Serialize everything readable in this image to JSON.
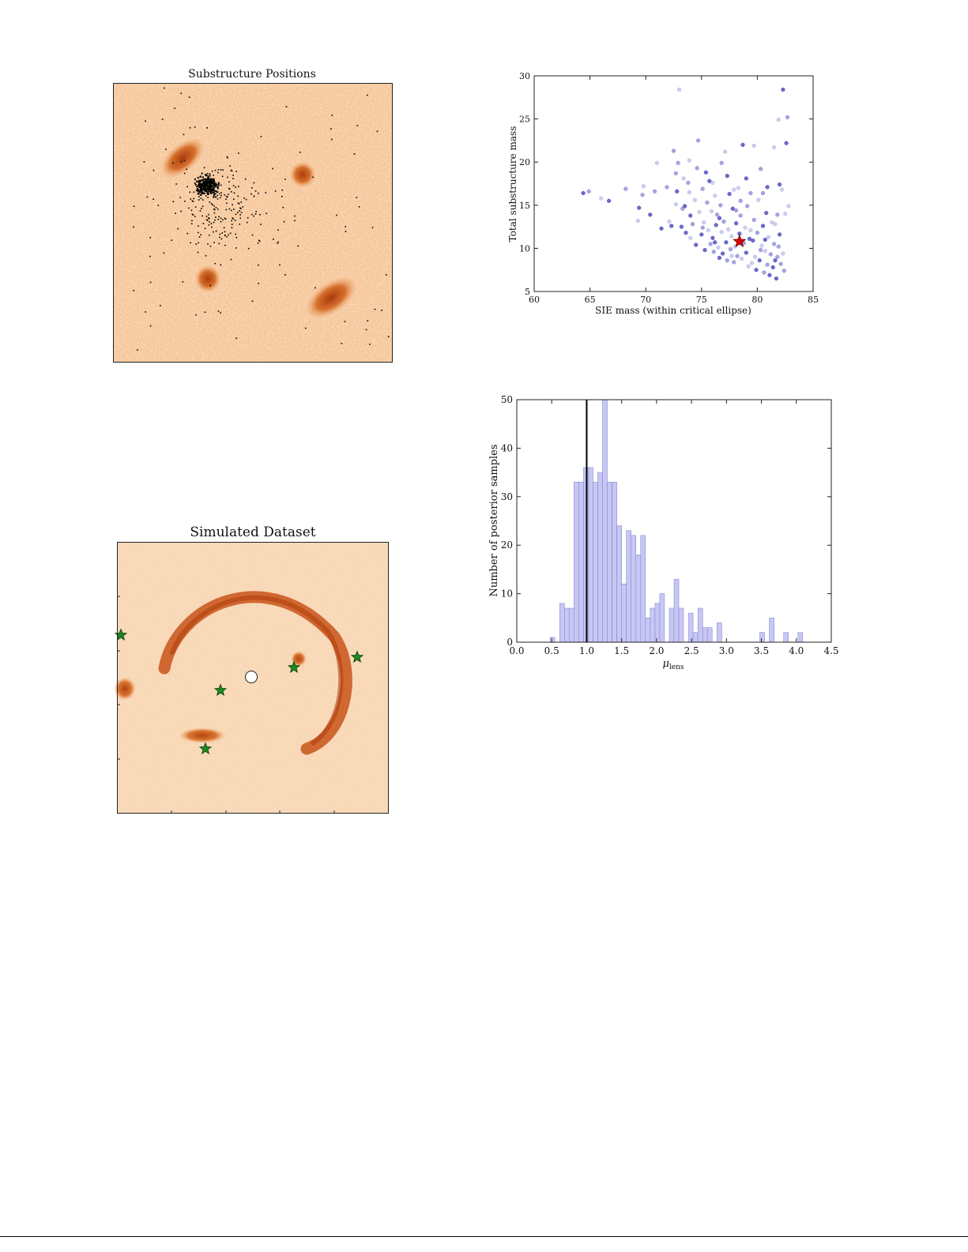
{
  "figures": {
    "substructure_map": {
      "title": "Substructure Positions"
    },
    "simulated_dataset": {
      "title": "Simulated Dataset"
    }
  },
  "colors": {
    "background_light": "#f8d9b6",
    "arc_dark": "#c24a12",
    "scatter_blue": "#3a3ab8",
    "true_value_star": "#e00000",
    "green_star": "#1d8a1d",
    "hist_fill": "#c7c7f3",
    "hist_edge": "#8a8ad6"
  },
  "chart_data": [
    {
      "type": "scatter",
      "title": "",
      "xlabel": "SIE mass (within critical ellipse)",
      "ylabel": "Total substructure mass",
      "xlim": [
        60,
        85
      ],
      "ylim": [
        5,
        30
      ],
      "xticks": [
        60,
        65,
        70,
        75,
        80,
        85
      ],
      "yticks": [
        5,
        10,
        15,
        20,
        25,
        30
      ],
      "true_value": {
        "x": 78.4,
        "y": 10.8,
        "marker": "red-star"
      },
      "points": [
        [
          64.4,
          16.4
        ],
        [
          64.9,
          16.6
        ],
        [
          66.0,
          15.8
        ],
        [
          66.7,
          15.5
        ],
        [
          68.2,
          16.9
        ],
        [
          69.3,
          13.2
        ],
        [
          69.4,
          14.7
        ],
        [
          69.7,
          16.2
        ],
        [
          69.8,
          17.2
        ],
        [
          70.4,
          13.9
        ],
        [
          70.8,
          16.6
        ],
        [
          71.0,
          19.9
        ],
        [
          71.4,
          12.3
        ],
        [
          71.9,
          17.1
        ],
        [
          72.1,
          13.1
        ],
        [
          72.3,
          12.6
        ],
        [
          72.5,
          21.3
        ],
        [
          72.7,
          15.1
        ],
        [
          72.8,
          16.6
        ],
        [
          72.9,
          19.9
        ],
        [
          73.0,
          28.4
        ],
        [
          73.2,
          12.5
        ],
        [
          73.3,
          14.6
        ],
        [
          73.4,
          18.1
        ],
        [
          73.6,
          11.8
        ],
        [
          73.8,
          17.6
        ],
        [
          73.9,
          16.5
        ],
        [
          74.0,
          13.8
        ],
        [
          74.2,
          12.8
        ],
        [
          74.4,
          15.6
        ],
        [
          74.5,
          10.4
        ],
        [
          74.7,
          22.5
        ],
        [
          74.8,
          14.2
        ],
        [
          75.0,
          11.6
        ],
        [
          75.1,
          16.9
        ],
        [
          75.2,
          13.0
        ],
        [
          75.3,
          9.8
        ],
        [
          75.5,
          15.3
        ],
        [
          75.6,
          12.1
        ],
        [
          75.7,
          17.8
        ],
        [
          75.8,
          10.5
        ],
        [
          75.9,
          14.3
        ],
        [
          76.0,
          11.2
        ],
        [
          76.1,
          9.6
        ],
        [
          76.2,
          16.1
        ],
        [
          76.3,
          12.7
        ],
        [
          76.4,
          13.9
        ],
        [
          76.5,
          10.1
        ],
        [
          76.6,
          8.9
        ],
        [
          76.7,
          15.0
        ],
        [
          76.8,
          11.9
        ],
        [
          76.9,
          9.4
        ],
        [
          77.0,
          13.1
        ],
        [
          77.1,
          21.2
        ],
        [
          77.2,
          10.7
        ],
        [
          77.3,
          8.6
        ],
        [
          77.4,
          12.2
        ],
        [
          77.5,
          16.3
        ],
        [
          77.6,
          9.9
        ],
        [
          77.7,
          11.4
        ],
        [
          77.8,
          14.6
        ],
        [
          77.9,
          8.4
        ],
        [
          78.0,
          10.2
        ],
        [
          78.1,
          12.9
        ],
        [
          78.2,
          9.1
        ],
        [
          78.3,
          17.0
        ],
        [
          78.4,
          11.7
        ],
        [
          78.5,
          13.8
        ],
        [
          78.6,
          8.8
        ],
        [
          78.7,
          22.0
        ],
        [
          78.8,
          10.6
        ],
        [
          78.9,
          12.4
        ],
        [
          79.0,
          9.5
        ],
        [
          79.1,
          14.9
        ],
        [
          79.2,
          7.9
        ],
        [
          79.3,
          11.1
        ],
        [
          79.4,
          16.4
        ],
        [
          79.5,
          8.3
        ],
        [
          79.6,
          10.9
        ],
        [
          79.7,
          13.3
        ],
        [
          79.8,
          9.0
        ],
        [
          79.9,
          7.5
        ],
        [
          80.0,
          11.8
        ],
        [
          80.1,
          15.6
        ],
        [
          80.2,
          8.6
        ],
        [
          80.3,
          19.2
        ],
        [
          80.4,
          10.3
        ],
        [
          80.5,
          12.6
        ],
        [
          80.6,
          7.2
        ],
        [
          80.7,
          9.7
        ],
        [
          80.8,
          14.1
        ],
        [
          80.9,
          8.1
        ],
        [
          81.0,
          11.3
        ],
        [
          81.1,
          6.9
        ],
        [
          81.2,
          9.3
        ],
        [
          81.3,
          13.0
        ],
        [
          81.4,
          7.8
        ],
        [
          81.5,
          10.5
        ],
        [
          81.6,
          12.8
        ],
        [
          81.7,
          6.5
        ],
        [
          81.8,
          9.0
        ],
        [
          81.9,
          24.9
        ],
        [
          82.0,
          11.6
        ],
        [
          82.1,
          8.2
        ],
        [
          82.2,
          16.8
        ],
        [
          82.3,
          28.4
        ],
        [
          82.4,
          7.4
        ],
        [
          82.5,
          14.0
        ],
        [
          82.6,
          22.2
        ],
        [
          82.7,
          25.2
        ],
        [
          82.8,
          14.9
        ],
        [
          82.0,
          17.4
        ],
        [
          81.8,
          13.9
        ],
        [
          81.5,
          21.7
        ],
        [
          80.9,
          17.1
        ],
        [
          80.5,
          16.4
        ],
        [
          79.7,
          21.9
        ],
        [
          79.0,
          18.1
        ],
        [
          78.5,
          15.5
        ],
        [
          77.9,
          16.8
        ],
        [
          77.3,
          18.4
        ],
        [
          76.8,
          19.9
        ],
        [
          76.0,
          17.6
        ],
        [
          75.4,
          18.8
        ],
        [
          74.6,
          19.3
        ],
        [
          73.9,
          20.2
        ],
        [
          73.5,
          14.9
        ],
        [
          72.7,
          18.7
        ],
        [
          74.0,
          11.2
        ],
        [
          76.6,
          13.5
        ],
        [
          78.1,
          14.4
        ],
        [
          79.4,
          12.1
        ],
        [
          80.7,
          11.0
        ],
        [
          81.9,
          10.2
        ],
        [
          82.3,
          9.4
        ],
        [
          81.6,
          8.6
        ],
        [
          80.3,
          9.8
        ],
        [
          77.7,
          9.1
        ],
        [
          76.2,
          10.7
        ],
        [
          75.1,
          12.4
        ]
      ]
    },
    {
      "type": "bar",
      "title": "",
      "xlabel": "μ",
      "xlabel_sub": "lens",
      "ylabel": "Number of posterior samples",
      "xlim": [
        0.0,
        4.5
      ],
      "ylim": [
        0,
        50
      ],
      "xticks": [
        0.0,
        0.5,
        1.0,
        1.5,
        2.0,
        2.5,
        3.0,
        3.5,
        4.0,
        4.5
      ],
      "xtick_labels": [
        "0.0",
        "0.5",
        "1.0",
        "1.5",
        "2.0",
        "2.5",
        "3.0",
        "3.5",
        "4.0",
        "4.5"
      ],
      "yticks": [
        0,
        10,
        20,
        30,
        40,
        50
      ],
      "true_value_line": 1.0,
      "bin_width": 0.0682,
      "bins": [
        {
          "x": 0.477,
          "value": 1
        },
        {
          "x": 0.614,
          "value": 8
        },
        {
          "x": 0.682,
          "value": 7
        },
        {
          "x": 0.75,
          "value": 7
        },
        {
          "x": 0.818,
          "value": 33
        },
        {
          "x": 0.886,
          "value": 33
        },
        {
          "x": 0.955,
          "value": 36
        },
        {
          "x": 1.023,
          "value": 36
        },
        {
          "x": 1.091,
          "value": 33
        },
        {
          "x": 1.159,
          "value": 35
        },
        {
          "x": 1.227,
          "value": 50
        },
        {
          "x": 1.295,
          "value": 33
        },
        {
          "x": 1.364,
          "value": 33
        },
        {
          "x": 1.432,
          "value": 24
        },
        {
          "x": 1.5,
          "value": 12
        },
        {
          "x": 1.568,
          "value": 23
        },
        {
          "x": 1.636,
          "value": 22
        },
        {
          "x": 1.705,
          "value": 18
        },
        {
          "x": 1.773,
          "value": 22
        },
        {
          "x": 1.841,
          "value": 5
        },
        {
          "x": 1.909,
          "value": 7
        },
        {
          "x": 1.977,
          "value": 8
        },
        {
          "x": 2.045,
          "value": 10
        },
        {
          "x": 2.182,
          "value": 7
        },
        {
          "x": 2.25,
          "value": 13
        },
        {
          "x": 2.318,
          "value": 7
        },
        {
          "x": 2.455,
          "value": 6
        },
        {
          "x": 2.523,
          "value": 2
        },
        {
          "x": 2.591,
          "value": 7
        },
        {
          "x": 2.659,
          "value": 3
        },
        {
          "x": 2.727,
          "value": 3
        },
        {
          "x": 2.864,
          "value": 4
        },
        {
          "x": 3.477,
          "value": 2
        },
        {
          "x": 3.614,
          "value": 5
        },
        {
          "x": 3.818,
          "value": 2
        },
        {
          "x": 4.023,
          "value": 2
        }
      ]
    }
  ]
}
